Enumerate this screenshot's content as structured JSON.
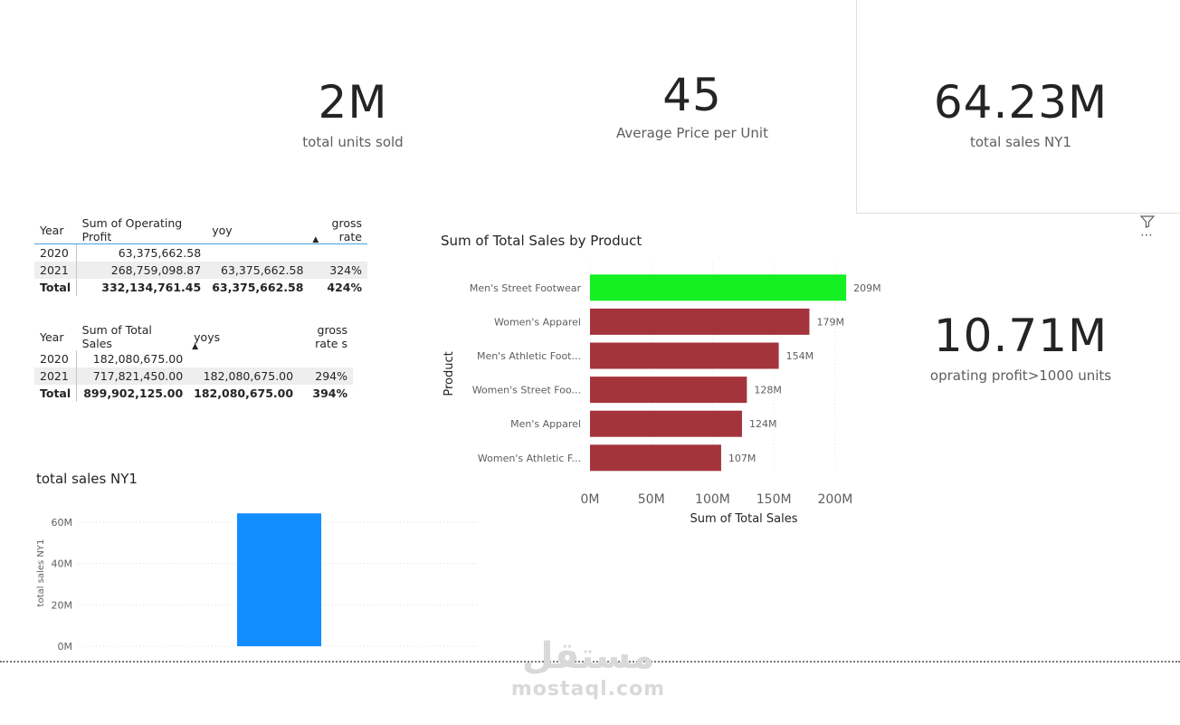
{
  "cards": {
    "units": {
      "value": "2M",
      "label": "total units sold"
    },
    "avg_price": {
      "value": "45",
      "label": "Average Price per Unit"
    },
    "sales_ny1": {
      "value": "64.23M",
      "label": "total sales NY1"
    },
    "op_profit": {
      "value": "10.71M",
      "label": "oprating profit>1000 units"
    }
  },
  "icons": {
    "filter": "filter-icon",
    "more": "more-options-icon"
  },
  "table1": {
    "headers": [
      "Year",
      "Sum of Operating Profit",
      "yoy",
      "gross rate"
    ],
    "rows": [
      {
        "year": "2020",
        "a": "63,375,662.58",
        "b": "",
        "c": ""
      },
      {
        "year": "2021",
        "a": "268,759,098.87",
        "b": "63,375,662.58",
        "c": "324%"
      },
      {
        "year": "Total",
        "a": "332,134,761.45",
        "b": "63,375,662.58",
        "c": "424%"
      }
    ]
  },
  "table2": {
    "headers": [
      "Year",
      "Sum of Total Sales",
      "yoys",
      "gross rate s"
    ],
    "rows": [
      {
        "year": "2020",
        "a": "182,080,675.00",
        "b": "",
        "c": ""
      },
      {
        "year": "2021",
        "a": "717,821,450.00",
        "b": "182,080,675.00",
        "c": "294%"
      },
      {
        "year": "Total",
        "a": "899,902,125.00",
        "b": "182,080,675.00",
        "c": "394%"
      }
    ]
  },
  "chart_data": [
    {
      "type": "bar",
      "orientation": "horizontal",
      "title": "Sum of Total Sales by Product",
      "xlabel": "Sum of Total Sales",
      "ylabel": "Product",
      "categories": [
        "Men's Street Footwear",
        "Women's Apparel",
        "Men's Athletic Foot...",
        "Women's Street Foo...",
        "Men's Apparel",
        "Women's Athletic F..."
      ],
      "values": [
        209,
        179,
        154,
        128,
        124,
        107
      ],
      "value_labels": [
        "209M",
        "179M",
        "154M",
        "128M",
        "124M",
        "107M"
      ],
      "bar_colors": [
        "#14f022",
        "#a4343c",
        "#a4343c",
        "#a4343c",
        "#a4343c",
        "#a4343c"
      ],
      "xlim": [
        0,
        220
      ],
      "xticks": [
        0,
        50,
        100,
        150,
        200
      ],
      "xtick_labels": [
        "0M",
        "50M",
        "100M",
        "150M",
        "200M"
      ]
    },
    {
      "type": "bar",
      "title": "total sales NY1",
      "ylabel": "total sales NY1",
      "categories": [
        ""
      ],
      "values": [
        64.23
      ],
      "bar_colors": [
        "#118dff"
      ],
      "ylim": [
        0,
        70
      ],
      "yticks": [
        0,
        20,
        40,
        60
      ],
      "ytick_labels": [
        "0M",
        "20M",
        "40M",
        "60M"
      ]
    }
  ],
  "watermark": {
    "arabic": "مستقل",
    "latin": "mostaql.com"
  }
}
